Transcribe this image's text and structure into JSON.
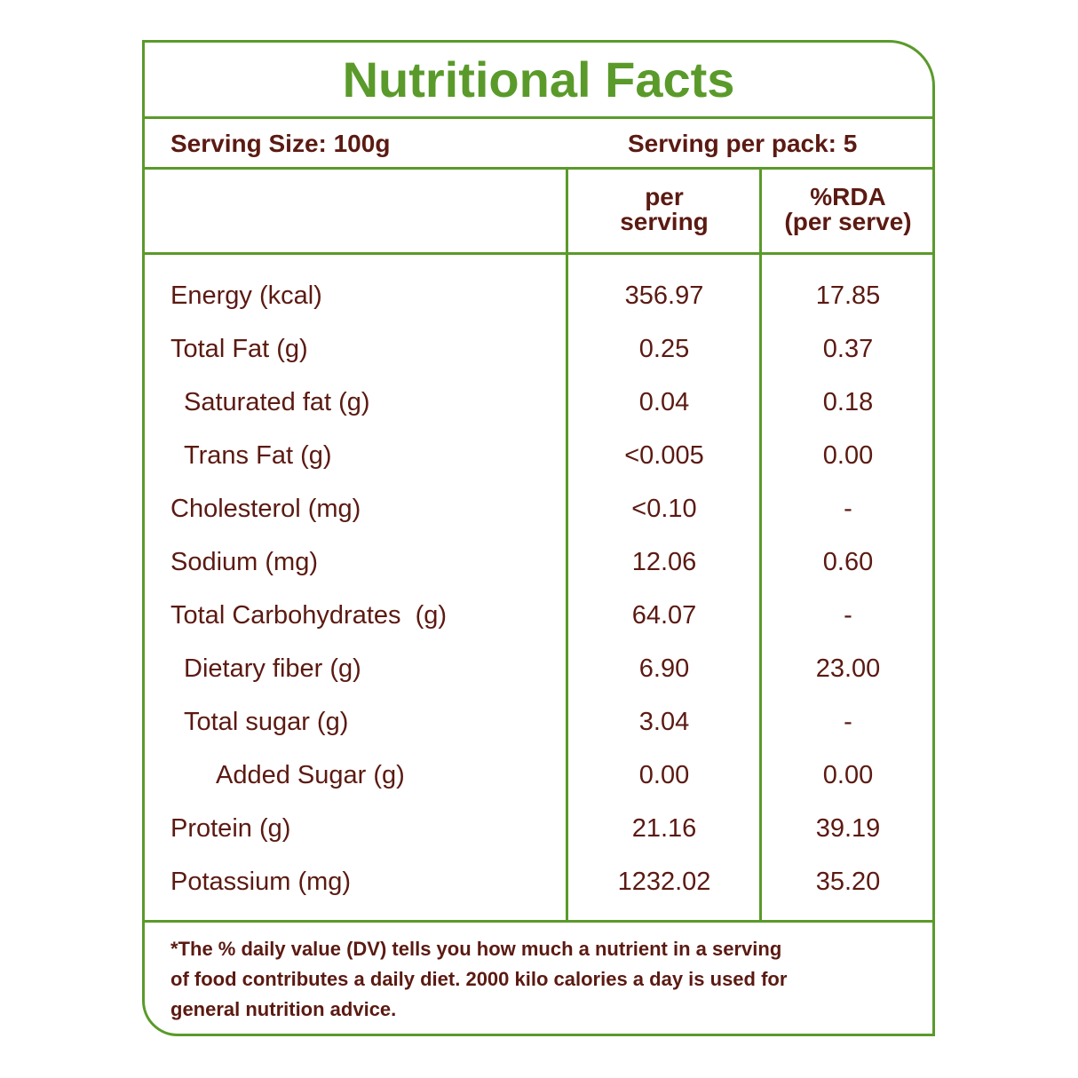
{
  "title": "Nutritional Facts",
  "serving": {
    "size": "Serving Size: 100g",
    "per_pack": "Serving per pack: 5"
  },
  "table": {
    "header": [
      [
        "per",
        "serving"
      ],
      [
        "%RDA",
        "(per serve)"
      ]
    ],
    "rows": [
      [
        "Energy (kcal)",
        "356.97",
        "17.85"
      ],
      [
        "Total Fat (g)",
        "0.25",
        "0.37"
      ],
      [
        "Saturated fat (g)",
        "0.04",
        "0.18"
      ],
      [
        "Trans Fat (g)",
        "<0.005",
        "0.00"
      ],
      [
        "Cholesterol (mg)",
        "<0.10",
        "-"
      ],
      [
        "Sodium (mg)",
        "12.06",
        "0.60"
      ],
      [
        "Total Carbohydrates  (g)",
        "64.07",
        "-"
      ],
      [
        "Dietary fiber (g)",
        "6.90",
        "23.00"
      ],
      [
        "Total sugar (g)",
        "3.04",
        "-"
      ],
      [
        "Added Sugar (g)",
        "0.00",
        "0.00"
      ],
      [
        "Protein (g)",
        "21.16",
        "39.19"
      ],
      [
        "Potassium (mg)",
        "1232.02",
        "35.20"
      ]
    ]
  },
  "footnote": [
    "*The % daily value (DV) tells you how much a nutrient in a serving",
    "of food contributes a daily diet. 2000 kilo calories a day is used for",
    "general nutrition advice."
  ]
}
